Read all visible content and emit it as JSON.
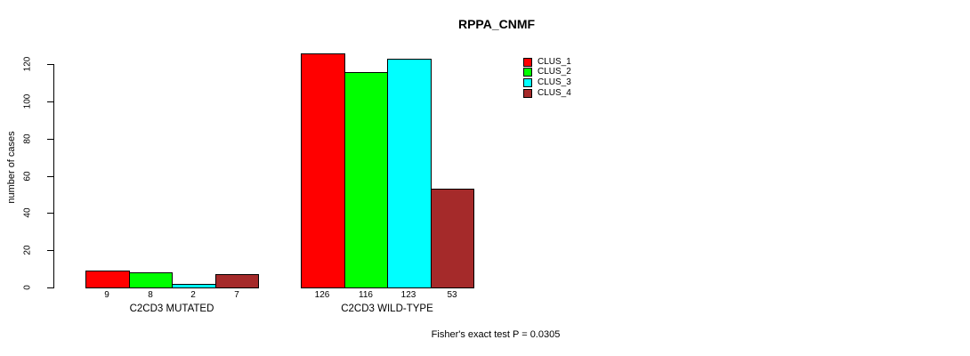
{
  "title": "RPPA_CNMF",
  "y_axis": {
    "label": "number of cases",
    "ticks": [
      0,
      20,
      40,
      60,
      80,
      100,
      120
    ]
  },
  "footer": "Fisher's exact test P = 0.0305",
  "chart_data": {
    "type": "bar",
    "title": "RPPA_CNMF",
    "categories": [
      "C2CD3 MUTATED",
      "C2CD3 WILD-TYPE"
    ],
    "series": [
      {
        "name": "CLUS_1",
        "color": "#ff0000",
        "values": [
          9,
          126
        ]
      },
      {
        "name": "CLUS_2",
        "color": "#00ff00",
        "values": [
          8,
          116
        ]
      },
      {
        "name": "CLUS_3",
        "color": "#00ffff",
        "values": [
          2,
          123
        ]
      },
      {
        "name": "CLUS_4",
        "color": "#a52a2a",
        "values": [
          7,
          53
        ]
      }
    ],
    "bar_value_labels": [
      [
        9,
        8,
        2,
        7
      ],
      [
        126,
        116,
        123,
        53
      ]
    ],
    "xlabel": "",
    "ylabel": "number of cases",
    "ylim": [
      0,
      126
    ],
    "yticks": [
      0,
      20,
      40,
      60,
      80,
      100,
      120
    ],
    "grid": false,
    "legend_position": "top-right",
    "annotation": "Fisher's exact test P = 0.0305"
  }
}
